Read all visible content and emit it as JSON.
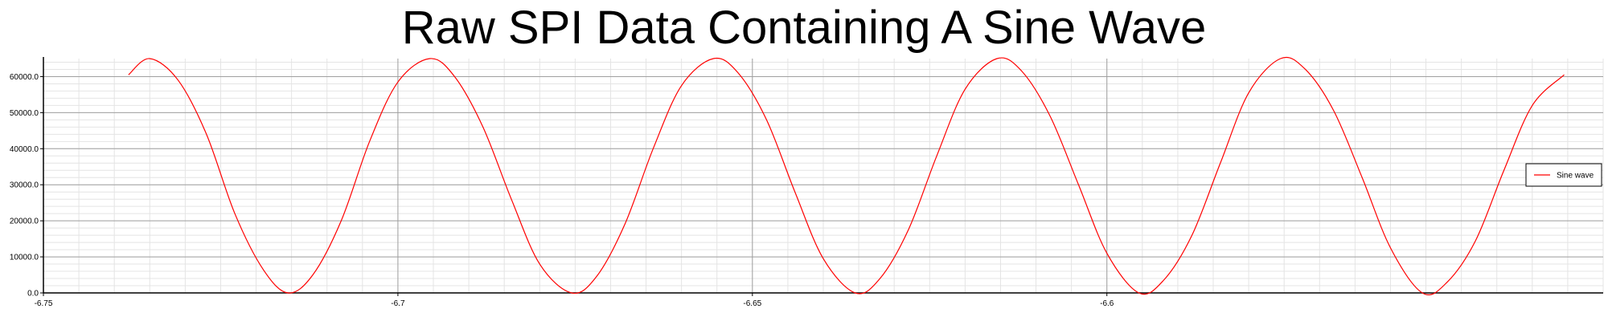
{
  "chart_data": {
    "type": "line",
    "title": "Raw SPI Data Containing A Sine Wave",
    "xlabel": "",
    "ylabel": "",
    "xlim": [
      -6.75,
      -6.53
    ],
    "ylim": [
      0,
      65000
    ],
    "x_ticks": [
      {
        "value": -6.75,
        "label": "-6.75"
      },
      {
        "value": -6.7,
        "label": "-6.7"
      },
      {
        "value": -6.65,
        "label": "-6.65"
      },
      {
        "value": -6.6,
        "label": "-6.6"
      }
    ],
    "y_ticks": [
      {
        "value": 0,
        "label": "0.0"
      },
      {
        "value": 10000,
        "label": "10000.0"
      },
      {
        "value": 20000,
        "label": "20000.0"
      },
      {
        "value": 30000,
        "label": "30000.0"
      },
      {
        "value": 40000,
        "label": "40000.0"
      },
      {
        "value": 50000,
        "label": "50000.0"
      },
      {
        "value": 60000,
        "label": "60000.0"
      }
    ],
    "grid": true,
    "legend_position": "right",
    "series": [
      {
        "name": "Sine wave",
        "color": "#ff0000",
        "x_start": -6.738,
        "x_end": -6.5355,
        "points": [
          [
            -6.738,
            60500
          ],
          [
            -6.735,
            65000
          ],
          [
            -6.731,
            59000
          ],
          [
            -6.727,
            44000
          ],
          [
            -6.723,
            22000
          ],
          [
            -6.719,
            6500
          ],
          [
            -6.7155,
            0
          ],
          [
            -6.712,
            5000
          ],
          [
            -6.708,
            20000
          ],
          [
            -6.704,
            42000
          ],
          [
            -6.7,
            58500
          ],
          [
            -6.6955,
            65000
          ],
          [
            -6.692,
            60000
          ],
          [
            -6.688,
            46000
          ],
          [
            -6.684,
            26000
          ],
          [
            -6.68,
            8000
          ],
          [
            -6.6755,
            0
          ],
          [
            -6.672,
            4500
          ],
          [
            -6.668,
            19000
          ],
          [
            -6.664,
            40000
          ],
          [
            -6.66,
            57500
          ],
          [
            -6.6555,
            65000
          ],
          [
            -6.652,
            61000
          ],
          [
            -6.648,
            48000
          ],
          [
            -6.644,
            28000
          ],
          [
            -6.64,
            9500
          ],
          [
            -6.6355,
            0
          ],
          [
            -6.632,
            4000
          ],
          [
            -6.628,
            17500
          ],
          [
            -6.624,
            38000
          ],
          [
            -6.62,
            56500
          ],
          [
            -6.6155,
            65000
          ],
          [
            -6.612,
            61500
          ],
          [
            -6.608,
            49000
          ],
          [
            -6.604,
            30000
          ],
          [
            -6.6,
            11000
          ],
          [
            -6.5955,
            0
          ],
          [
            -6.592,
            3500
          ],
          [
            -6.588,
            16000
          ],
          [
            -6.584,
            36000
          ],
          [
            -6.58,
            55500
          ],
          [
            -6.5755,
            65000
          ],
          [
            -6.572,
            62000
          ],
          [
            -6.568,
            50500
          ],
          [
            -6.564,
            32000
          ],
          [
            -6.56,
            12500
          ],
          [
            -6.5555,
            0
          ],
          [
            -6.552,
            3000
          ],
          [
            -6.548,
            14500
          ],
          [
            -6.544,
            34000
          ],
          [
            -6.54,
            52000
          ],
          [
            -6.5355,
            60500
          ]
        ]
      }
    ]
  }
}
